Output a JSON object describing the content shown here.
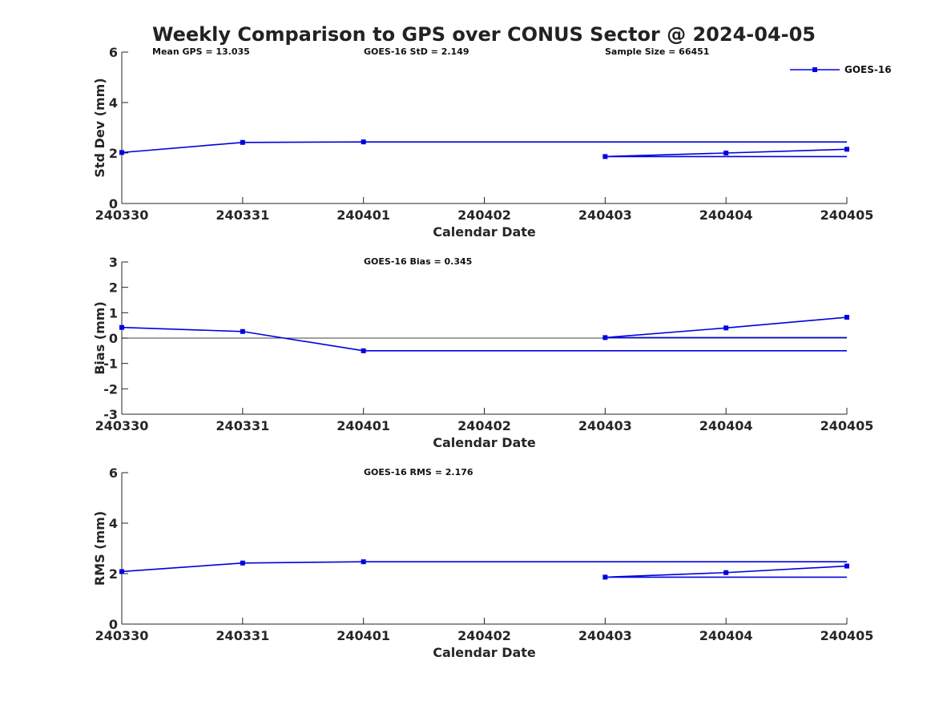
{
  "chart_data": {
    "title": "Weekly Comparison to GPS over CONUS Sector @ 2024-04-05",
    "legend": {
      "label": "GOES-16",
      "placement": "top-right",
      "color": "#0000e0"
    },
    "colors": {
      "series": "#0000e0",
      "zero_line": "#000000",
      "axes": "#262626"
    },
    "panels": [
      {
        "type": "line",
        "xlabel": "Calendar Date",
        "ylabel": "Std Dev (mm)",
        "x_ticks": [
          "240330",
          "240331",
          "240401",
          "240402",
          "240403",
          "240404",
          "240405"
        ],
        "ylim": [
          0,
          6
        ],
        "y_ticks": [
          "0",
          "2",
          "4",
          "6"
        ],
        "annotations": [
          "Mean GPS = 13.035",
          "GOES-16 StD = 2.149",
          "Sample Size = 66451"
        ],
        "series": [
          {
            "name": "GOES-16",
            "x": [
              0,
              1,
              2,
              4,
              5,
              6
            ],
            "values": [
              2.02,
              2.42,
              2.44,
              1.86,
              2.0,
              2.15
            ]
          },
          {
            "name": "GOES-16 reference levels",
            "x": [
              2,
              6,
              4,
              6
            ],
            "values": [
              2.44,
              2.44,
              1.86,
              1.86
            ],
            "segments": true
          }
        ]
      },
      {
        "type": "line",
        "xlabel": "Calendar Date",
        "ylabel": "Bias (mm)",
        "x_ticks": [
          "240330",
          "240331",
          "240401",
          "240402",
          "240403",
          "240404",
          "240405"
        ],
        "ylim": [
          -3,
          3
        ],
        "y_ticks": [
          "-3",
          "-2",
          "-1",
          "0",
          "1",
          "2",
          "3"
        ],
        "annotations": [
          "GOES-16 Bias  = 0.345"
        ],
        "zero_line": true,
        "series": [
          {
            "name": "GOES-16",
            "x": [
              0,
              1,
              2,
              4,
              5,
              6
            ],
            "values": [
              0.42,
              0.26,
              -0.5,
              0.02,
              0.4,
              0.82
            ]
          },
          {
            "name": "GOES-16 reference levels",
            "x": [
              2,
              6,
              4,
              6
            ],
            "values": [
              -0.5,
              -0.5,
              0.02,
              0.02
            ],
            "segments": true
          }
        ]
      },
      {
        "type": "line",
        "xlabel": "Calendar Date",
        "ylabel": "RMS (mm)",
        "x_ticks": [
          "240330",
          "240331",
          "240401",
          "240402",
          "240403",
          "240404",
          "240405"
        ],
        "ylim": [
          0,
          6
        ],
        "y_ticks": [
          "0",
          "2",
          "4",
          "6"
        ],
        "annotations": [
          "GOES-16 RMS = 2.176"
        ],
        "series": [
          {
            "name": "GOES-16",
            "x": [
              0,
              1,
              2,
              4,
              5,
              6
            ],
            "values": [
              2.08,
              2.42,
              2.47,
              1.86,
              2.04,
              2.3
            ]
          },
          {
            "name": "GOES-16 reference levels",
            "x": [
              2,
              6,
              4,
              6
            ],
            "values": [
              2.47,
              2.47,
              1.86,
              1.86
            ],
            "segments": true
          }
        ]
      }
    ]
  }
}
